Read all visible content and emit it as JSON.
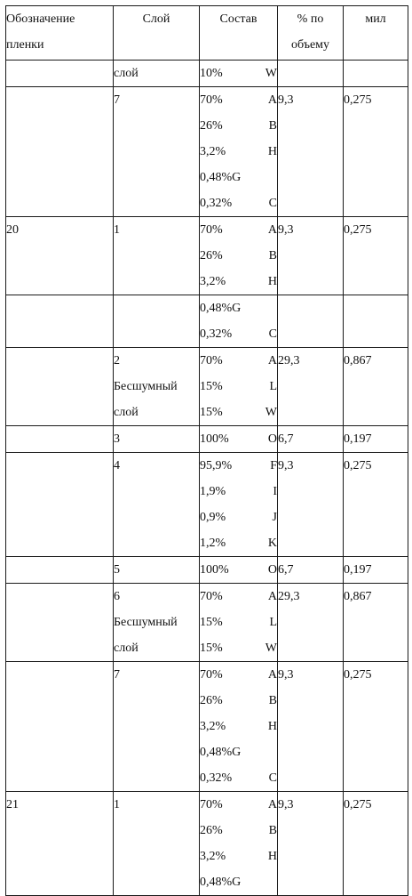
{
  "header": {
    "designation_line1": "Обозначение",
    "designation_line2": "пленки",
    "layer": "Слой",
    "composition": "Состав",
    "volume_line1": "% по",
    "volume_line2": "объему",
    "mil": "мил"
  },
  "rows": [
    {
      "film": "",
      "layer": [
        "слой"
      ],
      "comp": [
        [
          "10%",
          "W"
        ]
      ],
      "volume": "",
      "mil": ""
    },
    {
      "film": "",
      "layer": [
        "7"
      ],
      "comp": [
        [
          "70%",
          "A"
        ],
        [
          "26%",
          "B"
        ],
        [
          "3,2%",
          "H"
        ],
        [
          "0,48%G",
          ""
        ],
        [
          "0,32%",
          "C"
        ]
      ],
      "volume": "9,3",
      "mil": "0,275"
    },
    {
      "film": "20",
      "layer": [
        "1"
      ],
      "comp": [
        [
          "70%",
          "A"
        ],
        [
          "26%",
          "B"
        ],
        [
          "3,2%",
          "H"
        ]
      ],
      "volume": "9,3",
      "mil": "0,275"
    },
    {
      "film": "",
      "layer": [
        ""
      ],
      "comp": [
        [
          "0,48%G",
          ""
        ],
        [
          "0,32%",
          "C"
        ]
      ],
      "volume": "",
      "mil": ""
    },
    {
      "film": "",
      "layer": [
        "2",
        "Бесшумный",
        "слой"
      ],
      "comp": [
        [
          "70%",
          "A"
        ],
        [
          "15%",
          "L"
        ],
        [
          "15%",
          "W"
        ]
      ],
      "volume": "29,3",
      "mil": "0,867"
    },
    {
      "film": "",
      "layer": [
        "3"
      ],
      "comp": [
        [
          "100%",
          "O"
        ]
      ],
      "volume": "6,7",
      "mil": "0,197"
    },
    {
      "film": "",
      "layer": [
        "4"
      ],
      "comp": [
        [
          "95,9%",
          "F"
        ],
        [
          "1,9%",
          "I"
        ],
        [
          "0,9%",
          "J"
        ],
        [
          "1,2%",
          "K"
        ]
      ],
      "volume": "9,3",
      "mil": "0,275"
    },
    {
      "film": "",
      "layer": [
        "5"
      ],
      "comp": [
        [
          "100%",
          "O"
        ]
      ],
      "volume": "6,7",
      "mil": "0,197"
    },
    {
      "film": "",
      "layer": [
        "6",
        "Бесшумный",
        "слой"
      ],
      "comp": [
        [
          "70%",
          "A"
        ],
        [
          "15%",
          "L"
        ],
        [
          "15%",
          "W"
        ]
      ],
      "volume": "29,3",
      "mil": "0,867"
    },
    {
      "film": "",
      "layer": [
        "7"
      ],
      "comp": [
        [
          "70%",
          "A"
        ],
        [
          "26%",
          "B"
        ],
        [
          "3,2%",
          "H"
        ],
        [
          "0,48%G",
          ""
        ],
        [
          "0,32%",
          "C"
        ]
      ],
      "volume": "9,3",
      "mil": "0,275"
    },
    {
      "film": "21",
      "layer": [
        "1"
      ],
      "comp": [
        [
          "70%",
          "A"
        ],
        [
          "26%",
          "B"
        ],
        [
          "3,2%",
          "H"
        ],
        [
          "0,48%G",
          ""
        ]
      ],
      "volume": "9,3",
      "mil": "0,275"
    }
  ]
}
